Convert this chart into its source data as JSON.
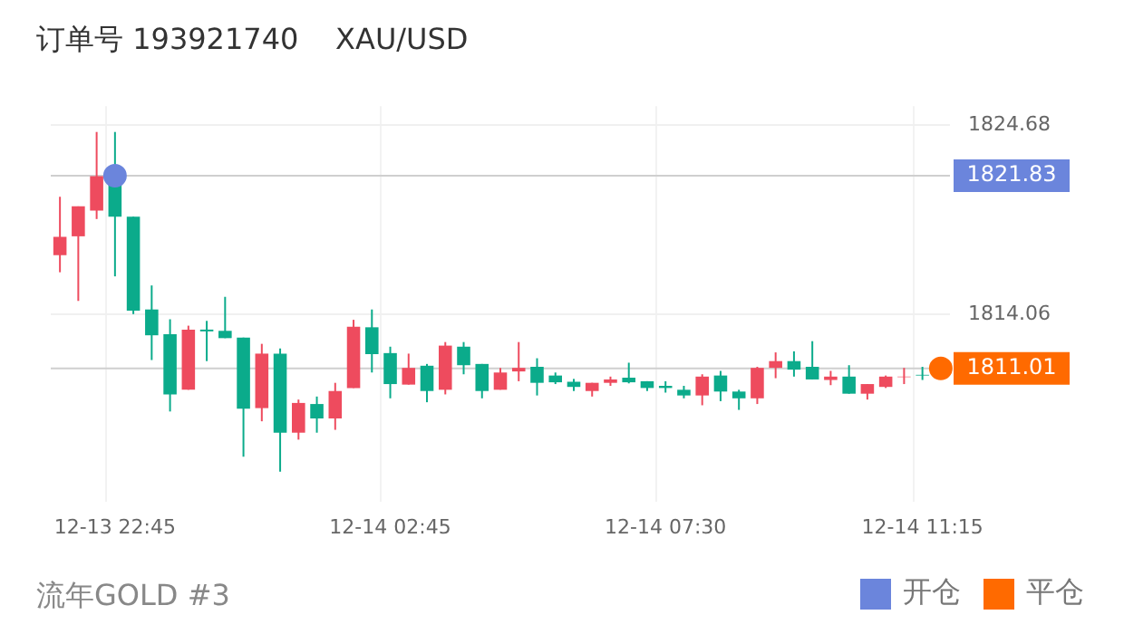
{
  "chart_data": {
    "type": "candlestick",
    "title": "订单号 193921740    XAU/USD",
    "annotations": [
      "流年GOLD #3"
    ],
    "categories": [
      null,
      null,
      null,
      "12-13 22:45",
      null,
      null,
      null,
      null,
      null,
      null,
      null,
      null,
      null,
      null,
      null,
      null,
      null,
      null,
      "12-14 02:45",
      null,
      null,
      null,
      null,
      null,
      null,
      null,
      null,
      null,
      null,
      null,
      null,
      null,
      null,
      "12-14 07:30",
      null,
      null,
      null,
      null,
      null,
      null,
      null,
      null,
      null,
      null,
      null,
      null,
      null,
      "12-14 11:15",
      null
    ],
    "ohlc": [
      [
        1817.37,
        1820.65,
        1816.41,
        1818.4
      ],
      [
        1818.43,
        1820.11,
        1814.8,
        1820.11
      ],
      [
        1819.88,
        1824.29,
        1819.4,
        1821.81
      ],
      [
        1821.83,
        1824.29,
        1816.18,
        1819.53
      ],
      [
        1819.53,
        1819.53,
        1814.06,
        1814.25
      ],
      [
        1814.32,
        1815.67,
        1811.48,
        1812.87
      ],
      [
        1812.93,
        1813.77,
        1808.59,
        1809.55
      ],
      [
        1809.81,
        1813.41,
        1809.81,
        1813.19
      ],
      [
        1813.19,
        1813.68,
        1811.42,
        1813.09
      ],
      [
        1813.12,
        1815.03,
        1812.71,
        1812.71
      ],
      [
        1812.74,
        1812.74,
        1806.05,
        1808.75
      ],
      [
        1808.78,
        1812.39,
        1808.04,
        1811.84
      ],
      [
        1811.84,
        1812.13,
        1805.21,
        1807.4
      ],
      [
        1807.4,
        1809.26,
        1807.01,
        1809.07
      ],
      [
        1809.01,
        1809.43,
        1807.4,
        1808.2
      ],
      [
        1808.2,
        1810.2,
        1807.56,
        1809.74
      ],
      [
        1809.91,
        1813.74,
        1809.91,
        1813.35
      ],
      [
        1813.32,
        1814.32,
        1810.78,
        1811.81
      ],
      [
        1811.87,
        1812.23,
        1809.33,
        1810.13
      ],
      [
        1810.1,
        1811.84,
        1810.1,
        1811.04
      ],
      [
        1811.16,
        1811.26,
        1809.11,
        1809.74
      ],
      [
        1809.81,
        1812.49,
        1809.55,
        1812.29
      ],
      [
        1812.23,
        1812.49,
        1810.68,
        1811.19
      ],
      [
        1811.26,
        1811.26,
        1809.33,
        1809.74
      ],
      [
        1809.81,
        1811.04,
        1809.81,
        1810.78
      ],
      [
        1810.84,
        1812.49,
        1810.29,
        1811.04
      ],
      [
        1811.1,
        1811.58,
        1809.49,
        1810.2
      ],
      [
        1810.61,
        1810.78,
        1810.13,
        1810.23
      ],
      [
        1810.26,
        1810.42,
        1809.74,
        1809.97
      ],
      [
        1809.74,
        1810.2,
        1809.43,
        1810.2
      ],
      [
        1810.2,
        1810.55,
        1810.03,
        1810.39
      ],
      [
        1810.49,
        1811.33,
        1810.17,
        1810.23
      ],
      [
        1810.29,
        1810.29,
        1809.74,
        1809.91
      ],
      [
        1810.03,
        1810.29,
        1809.65,
        1809.91
      ],
      [
        1809.81,
        1810.03,
        1809.33,
        1809.49
      ],
      [
        1809.49,
        1810.68,
        1808.94,
        1810.55
      ],
      [
        1810.61,
        1810.87,
        1809.17,
        1809.71
      ],
      [
        1809.71,
        1809.81,
        1808.68,
        1809.33
      ],
      [
        1809.33,
        1811.1,
        1809.01,
        1811.04
      ],
      [
        1811.04,
        1811.91,
        1810.46,
        1811.42
      ],
      [
        1811.42,
        1811.97,
        1810.55,
        1810.94
      ],
      [
        1811.1,
        1812.54,
        1810.39,
        1810.39
      ],
      [
        1810.36,
        1810.87,
        1810.07,
        1810.55
      ],
      [
        1810.55,
        1811.19,
        1809.59,
        1809.59
      ],
      [
        1809.59,
        1810.13,
        1809.26,
        1810.13
      ],
      [
        1809.97,
        1810.61,
        1809.91,
        1810.55
      ],
      [
        1810.52,
        1811.04,
        1810.13,
        1810.55
      ],
      [
        1810.65,
        1811.1,
        1810.36,
        1810.61
      ],
      null
    ],
    "colors": [
      "#ee4b5e",
      "#ee4b5e",
      "#ee4b5e",
      "#0bab8b",
      "#0bab8b",
      "#0bab8b",
      "#0bab8b",
      "#ee4b5e",
      "#0bab8b",
      "#0bab8b",
      "#0bab8b",
      "#ee4b5e",
      "#0bab8b",
      "#ee4b5e",
      "#0bab8b",
      "#ee4b5e",
      "#ee4b5e",
      "#0bab8b",
      "#0bab8b",
      "#ee4b5e",
      "#0bab8b",
      "#ee4b5e",
      "#0bab8b",
      "#0bab8b",
      "#ee4b5e",
      "#ee4b5e",
      "#0bab8b",
      "#0bab8b",
      "#0bab8b",
      "#ee4b5e",
      "#ee4b5e",
      "#0bab8b",
      "#0bab8b",
      "#0bab8b",
      "#0bab8b",
      "#ee4b5e",
      "#0bab8b",
      "#0bab8b",
      "#ee4b5e",
      "#ee4b5e",
      "#0bab8b",
      "#0bab8b",
      "#ee4b5e",
      "#0bab8b",
      "#ee4b5e",
      "#ee4b5e",
      "#ee4b5e",
      "#0bab8b",
      null
    ],
    "series": [
      {
        "name": "开仓",
        "type": "scatter",
        "color": "#6b85dc",
        "values": [
          null,
          null,
          null,
          1821.83,
          null,
          null,
          null,
          null,
          null,
          null,
          null,
          null,
          null,
          null,
          null,
          null,
          null,
          null,
          null,
          null,
          null,
          null,
          null,
          null,
          null,
          null,
          null,
          null,
          null,
          null,
          null,
          null,
          null,
          null,
          null,
          null,
          null,
          null,
          null,
          null,
          null,
          null,
          null,
          null,
          null,
          null,
          null,
          null,
          null
        ]
      },
      {
        "name": "平仓",
        "type": "scatter",
        "color": "#ff6a00",
        "values": [
          null,
          null,
          null,
          null,
          null,
          null,
          null,
          null,
          null,
          null,
          null,
          null,
          null,
          null,
          null,
          null,
          null,
          null,
          null,
          null,
          null,
          null,
          null,
          null,
          null,
          null,
          null,
          null,
          null,
          null,
          null,
          null,
          null,
          null,
          null,
          null,
          null,
          null,
          null,
          null,
          null,
          null,
          null,
          null,
          null,
          null,
          null,
          null,
          1811.01
        ]
      }
    ],
    "ref_lines": [
      {
        "axis": "y",
        "value": 1821.83,
        "label": "1821.83",
        "color": "#cfcfcf"
      },
      {
        "axis": "y",
        "value": 1811.01,
        "label": "1811.01",
        "color": "#cfcfcf"
      }
    ],
    "ylim": [
      1803.54,
      1825.74
    ],
    "yticks": [
      1814.06,
      1824.68
    ],
    "grid": true,
    "legend": "bottom right",
    "marker": "circle"
  }
}
